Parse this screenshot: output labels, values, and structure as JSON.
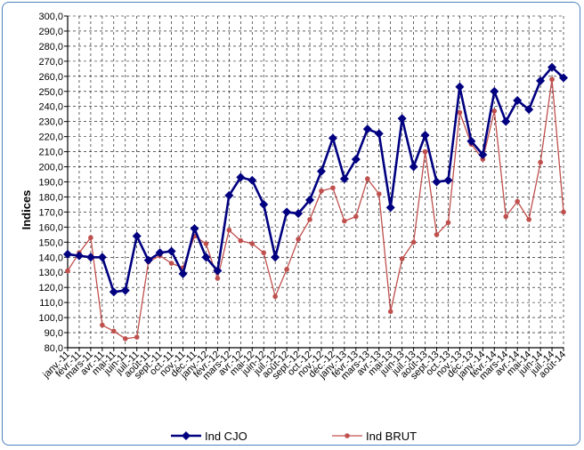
{
  "chart_data": {
    "type": "line",
    "ylabel": "Indices",
    "xlabel": "",
    "title": "",
    "ylim": [
      80,
      300
    ],
    "yticks": [
      "300,0",
      "290,0",
      "280,0",
      "270,0",
      "260,0",
      "250,0",
      "240,0",
      "230,0",
      "220,0",
      "210,0",
      "200,0",
      "190,0",
      "180,0",
      "170,0",
      "160,0",
      "150,0",
      "140,0",
      "130,0",
      "120,0",
      "110,0",
      "100,0",
      "90,0",
      "80,0"
    ],
    "grid": true,
    "legend_position": "bottom",
    "categories": [
      "janv.-11",
      "févr.-11",
      "mars-11",
      "avr.-11",
      "mai-11",
      "juin-11",
      "juil.-11",
      "août-11",
      "sept.-11",
      "oct.-11",
      "nov.-11",
      "déc.-11",
      "janv.-12",
      "févr.-12",
      "mars-12",
      "avr.-12",
      "mai-12",
      "juin-12",
      "juil.-12",
      "août-12",
      "sept.-12",
      "oct.-12",
      "nov.-12",
      "déc.-12",
      "janv.-13",
      "févr.-13",
      "mars-13",
      "avr.-13",
      "mai-13",
      "juin-13",
      "juil.-13",
      "août-13",
      "sept.-13",
      "oct.-13",
      "nov.-13",
      "déc.-13",
      "janv.-14",
      "févr.-14",
      "mars-14",
      "avr.-14",
      "mai-14",
      "juin-14",
      "juil.-14",
      "août-14"
    ],
    "series": [
      {
        "name": "Ind CJO",
        "color": "#000080",
        "marker": "diamond",
        "values": [
          142,
          141,
          140,
          140,
          117,
          118,
          154,
          138,
          143,
          144,
          129,
          159,
          140,
          131,
          181,
          193,
          191,
          175,
          140,
          170,
          169,
          178,
          197,
          219,
          192,
          205,
          225,
          222,
          173,
          232,
          200,
          221,
          190,
          191,
          253,
          217,
          208,
          250,
          230,
          244,
          238,
          257,
          266,
          259
        ]
      },
      {
        "name": "Ind BRUT",
        "color": "#c0504d",
        "marker": "circle",
        "values": [
          131,
          143,
          153,
          95,
          91,
          86,
          87,
          137,
          141,
          136,
          133,
          154,
          149,
          126,
          158,
          151,
          149,
          143,
          114,
          132,
          152,
          165,
          184,
          186,
          164,
          167,
          192,
          182,
          104,
          139,
          150,
          210,
          155,
          163,
          236,
          215,
          205,
          237,
          167,
          177,
          165,
          203,
          258,
          170
        ]
      }
    ]
  }
}
